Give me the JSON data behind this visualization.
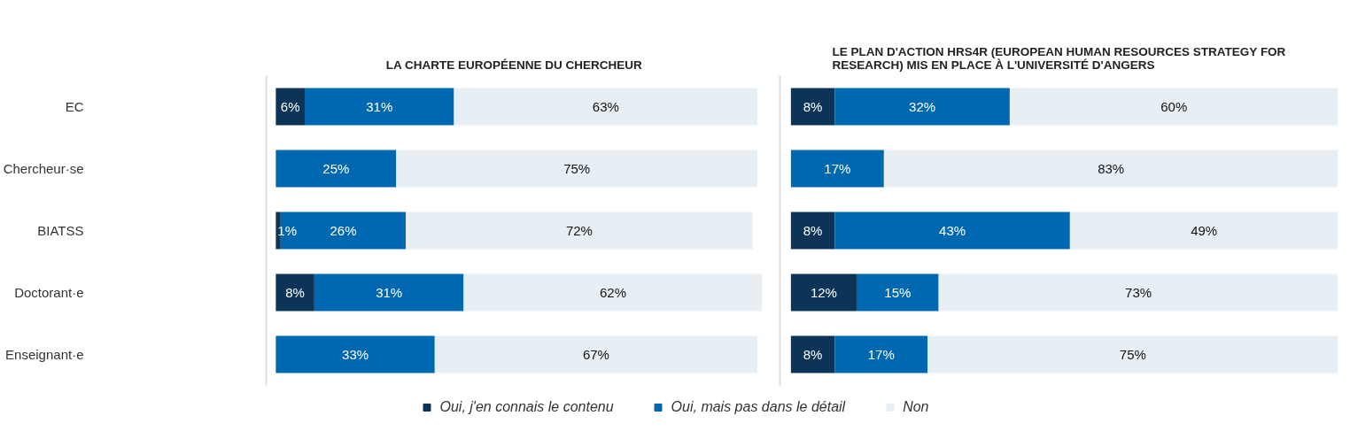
{
  "chart_data": [
    {
      "type": "bar",
      "orientation": "horizontal",
      "stacked": true,
      "title": "LA CHARTE EUROPÉENNE DU CHERCHEUR",
      "categories": [
        "EC",
        "Chercheur·se",
        "BIATSS",
        "Doctorant·e",
        "Enseignant·e"
      ],
      "series": [
        {
          "name": "Oui, j'en connais le contenu",
          "color": "#0b3456",
          "values": [
            6,
            null,
            1,
            8,
            null
          ],
          "value_labels": [
            "6%",
            null,
            "1%",
            "8%",
            null
          ]
        },
        {
          "name": "Oui, mais pas dans le détail",
          "color": "#0067b1",
          "values": [
            31,
            25,
            26,
            31,
            33
          ],
          "value_labels": [
            "31%",
            "25%",
            "26%",
            "31%",
            "33%"
          ]
        },
        {
          "name": "Non",
          "color": "#e8eff4",
          "values": [
            63,
            75,
            72,
            62,
            67
          ],
          "value_labels": [
            "63%",
            "75%",
            "72%",
            "62%",
            "67%"
          ]
        }
      ],
      "tick_labels": "y",
      "legend": "bottom"
    },
    {
      "type": "bar",
      "orientation": "horizontal",
      "stacked": true,
      "title": "LE PLAN D'ACTION HRS4R (EUROPEAN HUMAN RESOURCES STRATEGY FOR RESEARCH) MIS EN PLACE À L'UNIVERSITÉ D'ANGERS",
      "categories": [
        "EC",
        "Chercheur·se",
        "BIATSS",
        "Doctorant·e",
        "Enseignant·e"
      ],
      "series": [
        {
          "color": "#0b3456",
          "values": [
            8,
            null,
            8,
            12,
            8
          ],
          "value_labels": [
            "8%",
            null,
            "8%",
            "12%",
            "8%"
          ]
        },
        {
          "color": "#0067b1",
          "values": [
            32,
            17,
            43,
            15,
            17
          ],
          "value_labels": [
            "32%",
            "17%",
            "43%",
            "15%",
            "17%"
          ]
        },
        {
          "color": "#e8eff4",
          "values": [
            60,
            83,
            49,
            73,
            75
          ],
          "value_labels": [
            "60%",
            "83%",
            "49%",
            "73%",
            "75%"
          ]
        }
      ],
      "tick_labels": false
    }
  ]
}
